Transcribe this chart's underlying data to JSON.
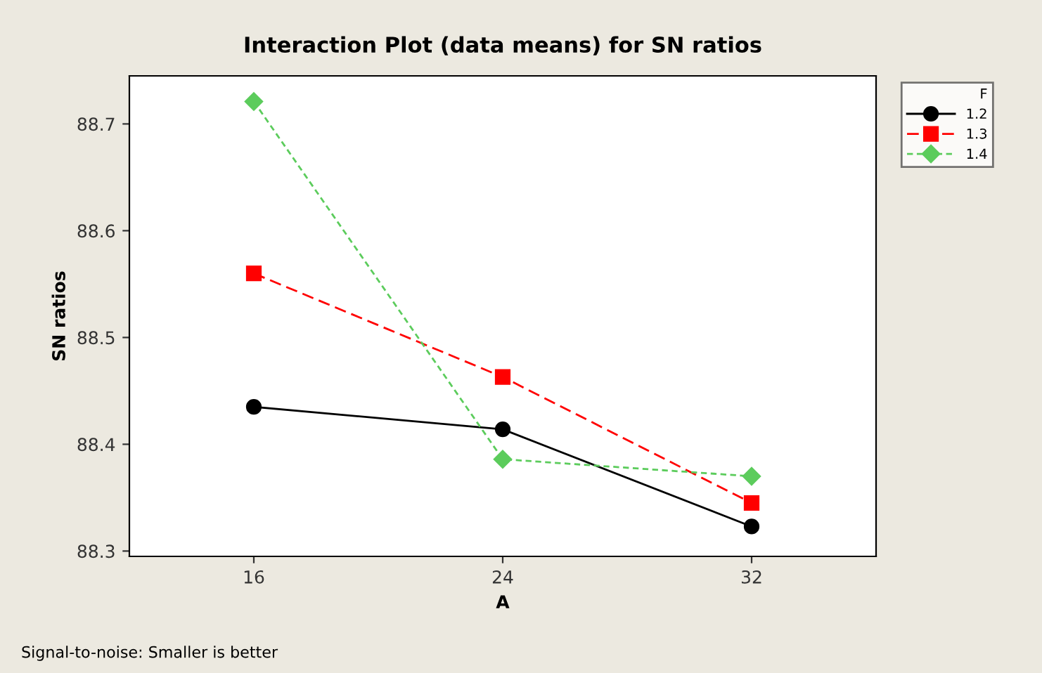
{
  "chart_data": {
    "type": "line",
    "title": "Interaction Plot (data means) for SN ratios",
    "xlabel": "A",
    "ylabel": "SN ratios",
    "legend_title": "F",
    "x": [
      16,
      24,
      32
    ],
    "xlim": [
      12,
      36
    ],
    "xticks": [
      16,
      24,
      32
    ],
    "ylim": [
      88.295,
      88.745
    ],
    "yticks": [
      88.3,
      88.4,
      88.5,
      88.6,
      88.7
    ],
    "series": [
      {
        "name": "1.2",
        "color": "#000000",
        "marker": "circle",
        "line_style": "solid",
        "values": [
          88.435,
          88.414,
          88.323
        ]
      },
      {
        "name": "1.3",
        "color": "#ff0000",
        "marker": "square",
        "line_style": "dashed",
        "values": [
          88.56,
          88.463,
          88.345
        ]
      },
      {
        "name": "1.4",
        "color": "#5ccc5c",
        "marker": "diamond",
        "line_style": "dotted",
        "values": [
          88.721,
          88.386,
          88.37
        ]
      }
    ],
    "legend": "top right",
    "grid": false,
    "annotations": [
      "Signal-to-noise: Smaller is better"
    ]
  }
}
